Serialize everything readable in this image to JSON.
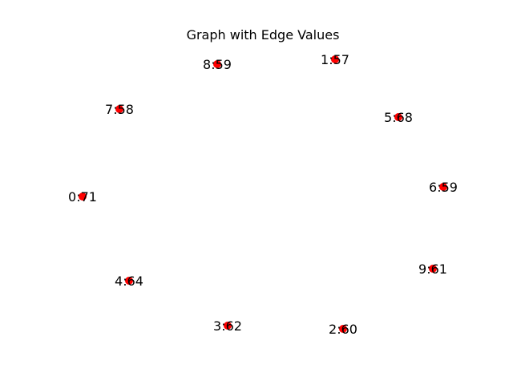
{
  "title": "Graph with Edge Values",
  "node_color": "#ff0000",
  "nodes": [
    {
      "id": 0,
      "label": "0:71"
    },
    {
      "id": 1,
      "label": "1:57"
    },
    {
      "id": 2,
      "label": "2:60"
    },
    {
      "id": 3,
      "label": "3:62"
    },
    {
      "id": 4,
      "label": "4:64"
    },
    {
      "id": 5,
      "label": "5:68"
    },
    {
      "id": 6,
      "label": "6:59"
    },
    {
      "id": 7,
      "label": "7:58"
    },
    {
      "id": 8,
      "label": "8:59"
    },
    {
      "id": 9,
      "label": "9:61"
    }
  ]
}
